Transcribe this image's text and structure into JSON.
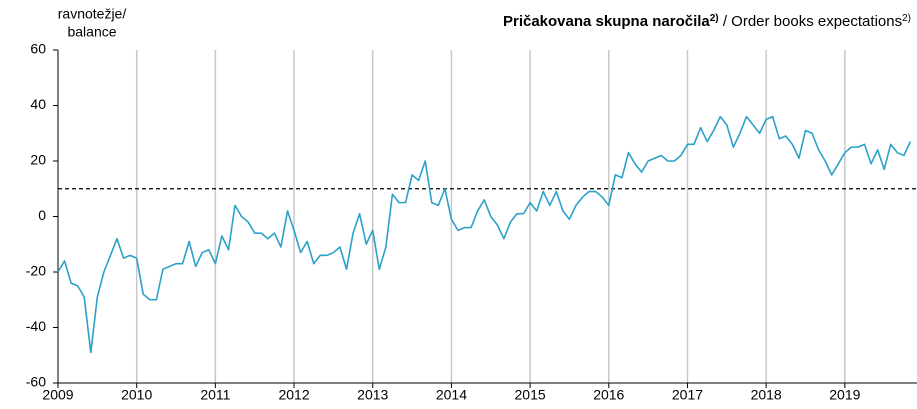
{
  "chart_data": {
    "type": "line",
    "title": "Pričakovana skupna naročila",
    "title_note": "2)",
    "title_en": " / Order books expectations",
    "title_en_note": "2)",
    "ylabel": [
      "ravnotežje/",
      "balance"
    ],
    "x": [
      2009,
      2009.083,
      2009.167,
      2009.25,
      2009.333,
      2009.417,
      2009.5,
      2009.583,
      2009.667,
      2009.75,
      2009.833,
      2009.917,
      2010,
      2010.083,
      2010.167,
      2010.25,
      2010.333,
      2010.417,
      2010.5,
      2010.583,
      2010.667,
      2010.75,
      2010.833,
      2010.917,
      2011,
      2011.083,
      2011.167,
      2011.25,
      2011.333,
      2011.417,
      2011.5,
      2011.583,
      2011.667,
      2011.75,
      2011.833,
      2011.917,
      2012,
      2012.083,
      2012.167,
      2012.25,
      2012.333,
      2012.417,
      2012.5,
      2012.583,
      2012.667,
      2012.75,
      2012.833,
      2012.917,
      2013,
      2013.083,
      2013.167,
      2013.25,
      2013.333,
      2013.417,
      2013.5,
      2013.583,
      2013.667,
      2013.75,
      2013.833,
      2013.917,
      2014,
      2014.083,
      2014.167,
      2014.25,
      2014.333,
      2014.417,
      2014.5,
      2014.583,
      2014.667,
      2014.75,
      2014.833,
      2014.917,
      2015,
      2015.083,
      2015.167,
      2015.25,
      2015.333,
      2015.417,
      2015.5,
      2015.583,
      2015.667,
      2015.75,
      2015.833,
      2015.917,
      2016,
      2016.083,
      2016.167,
      2016.25,
      2016.333,
      2016.417,
      2016.5,
      2016.583,
      2016.667,
      2016.75,
      2016.833,
      2016.917,
      2017,
      2017.083,
      2017.167,
      2017.25,
      2017.333,
      2017.417,
      2017.5,
      2017.583,
      2017.667,
      2017.75,
      2017.833,
      2017.917,
      2018,
      2018.083,
      2018.167,
      2018.25,
      2018.333,
      2018.417,
      2018.5,
      2018.583,
      2018.667,
      2018.75,
      2018.833,
      2018.917,
      2019,
      2019.083,
      2019.167,
      2019.25,
      2019.333,
      2019.417,
      2019.5,
      2019.583,
      2019.667,
      2019.75,
      2019.833
    ],
    "series": [
      {
        "color": "#2ba1c9",
        "values": [
          -20,
          -16,
          -24,
          -25,
          -29,
          -49,
          -29,
          -20,
          -14,
          -8,
          -15,
          -14,
          -15,
          -28,
          -30,
          -30,
          -19,
          -18,
          -17,
          -17,
          -9,
          -18,
          -13,
          -12,
          -17,
          -7,
          -12,
          4,
          0,
          -2,
          -6,
          -6,
          -8,
          -6,
          -11,
          2,
          -5,
          -13,
          -9,
          -17,
          -14,
          -14,
          -13,
          -11,
          -19,
          -6,
          1,
          -10,
          -5,
          -19,
          -11,
          8,
          5,
          5,
          15,
          13,
          20,
          5,
          4,
          10,
          -1,
          -5,
          -4,
          -4,
          2,
          6,
          0,
          -3,
          -8,
          -2,
          1,
          1,
          5,
          2,
          9,
          4,
          9,
          2,
          -1,
          4,
          7,
          9,
          9,
          7,
          4,
          15,
          14,
          23,
          19,
          16,
          20,
          21,
          22,
          20,
          20,
          22,
          26,
          26,
          32,
          27,
          31,
          36,
          33,
          25,
          30,
          36,
          33,
          30,
          35,
          36,
          28,
          29,
          26,
          21,
          31,
          30,
          24,
          20,
          15,
          19,
          23,
          25,
          25,
          26,
          19,
          24,
          17,
          26,
          23,
          22,
          27
        ]
      }
    ],
    "hline": 10,
    "xlim": [
      2009,
      2019.917
    ],
    "xticks": [
      2009,
      2010,
      2011,
      2012,
      2013,
      2014,
      2015,
      2016,
      2017,
      2018,
      2019
    ],
    "ylim": [
      -60,
      60
    ],
    "yticks": [
      -60,
      -40,
      -20,
      0,
      20,
      40,
      60
    ],
    "grid": "x"
  }
}
